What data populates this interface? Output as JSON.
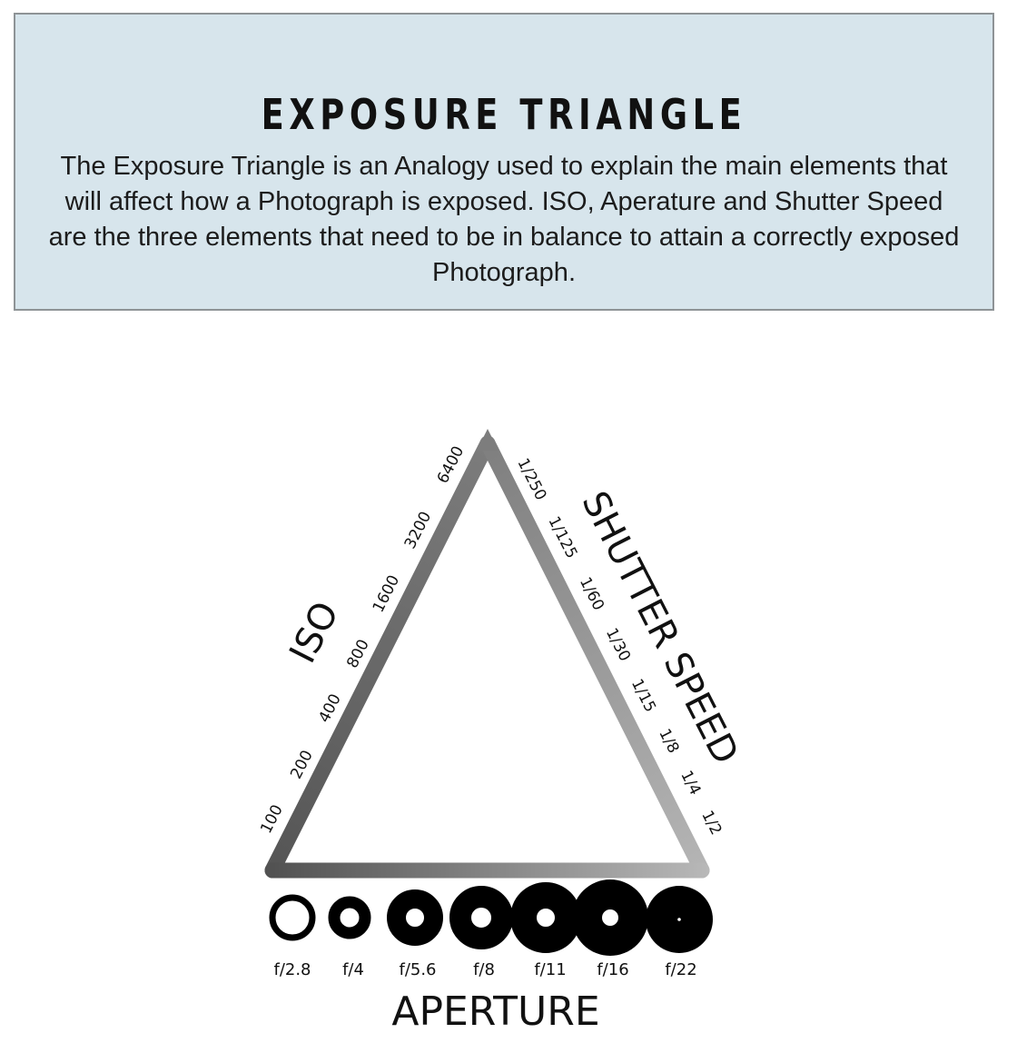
{
  "header": {
    "title": "EXPOSURE TRIANGLE",
    "description": "The Exposure Triangle is an Analogy used to explain the main elements that will affect how a Photograph is exposed. ISO, Aperature and Shutter Speed are the three elements that need to be in balance to attain a correctly exposed Photograph."
  },
  "diagram": {
    "iso": {
      "label": "ISO",
      "ticks": [
        "100",
        "200",
        "400",
        "800",
        "1600",
        "3200",
        "6400"
      ]
    },
    "shutter": {
      "label": "SHUTTER SPEED",
      "ticks": [
        "1/250",
        "1/125",
        "1/60",
        "1/30",
        "1/15",
        "1/8",
        "1/4",
        "1/2"
      ]
    },
    "aperture": {
      "label": "APERTURE",
      "stops": [
        "f/2.8",
        "f/4",
        "f/5.6",
        "f/8",
        "f/11",
        "f/16",
        "f/22"
      ]
    },
    "colors": {
      "edge_dark": "#505050",
      "edge_light": "#b8b8b8",
      "header_bg": "#d7e5ec",
      "header_border": "#8e9396"
    }
  }
}
